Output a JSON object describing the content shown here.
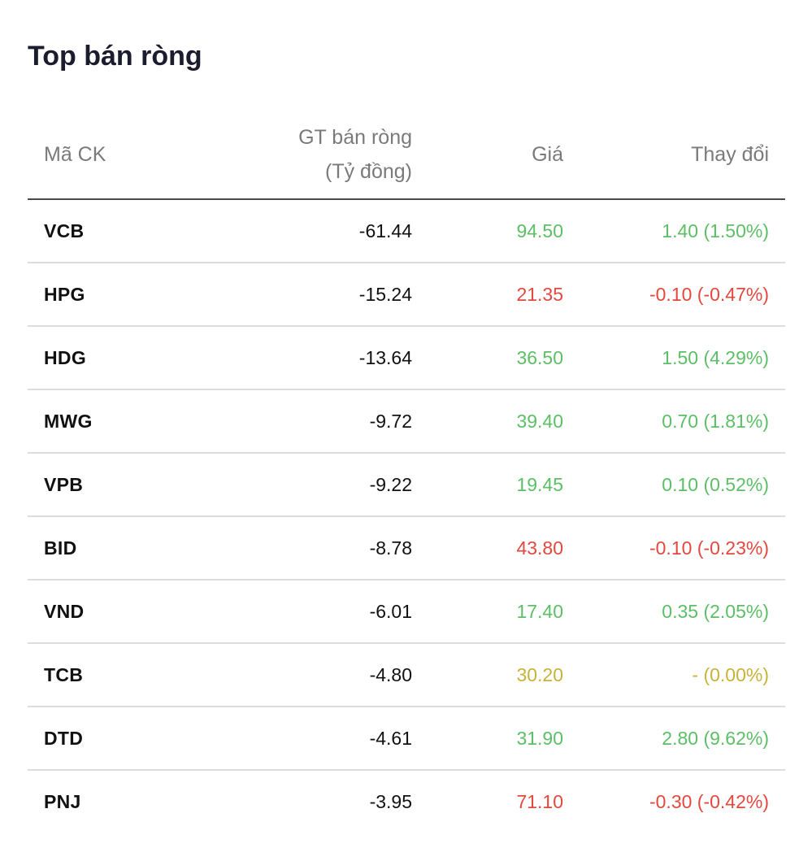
{
  "title": "Top bán ròng",
  "colors": {
    "up": "#5cbf66",
    "down": "#e2483e",
    "reference": "#c9b238"
  },
  "columns": {
    "symbol": "Mã CK",
    "net_sell_line1": "GT bán ròng",
    "net_sell_line2": "(Tỷ đồng)",
    "price": "Giá",
    "change": "Thay đổi"
  },
  "rows": [
    {
      "symbol": "VCB",
      "net_sell": "-61.44",
      "price": "94.50",
      "change": "1.40 (1.50%)",
      "trend": "up"
    },
    {
      "symbol": "HPG",
      "net_sell": "-15.24",
      "price": "21.35",
      "change": "-0.10 (-0.47%)",
      "trend": "down"
    },
    {
      "symbol": "HDG",
      "net_sell": "-13.64",
      "price": "36.50",
      "change": "1.50 (4.29%)",
      "trend": "up"
    },
    {
      "symbol": "MWG",
      "net_sell": "-9.72",
      "price": "39.40",
      "change": "0.70 (1.81%)",
      "trend": "up"
    },
    {
      "symbol": "VPB",
      "net_sell": "-9.22",
      "price": "19.45",
      "change": "0.10 (0.52%)",
      "trend": "up"
    },
    {
      "symbol": "BID",
      "net_sell": "-8.78",
      "price": "43.80",
      "change": "-0.10 (-0.23%)",
      "trend": "down"
    },
    {
      "symbol": "VND",
      "net_sell": "-6.01",
      "price": "17.40",
      "change": "0.35 (2.05%)",
      "trend": "up"
    },
    {
      "symbol": "TCB",
      "net_sell": "-4.80",
      "price": "30.20",
      "change": "- (0.00%)",
      "trend": "ref"
    },
    {
      "symbol": "DTD",
      "net_sell": "-4.61",
      "price": "31.90",
      "change": "2.80 (9.62%)",
      "trend": "up"
    },
    {
      "symbol": "PNJ",
      "net_sell": "-3.95",
      "price": "71.10",
      "change": "-0.30 (-0.42%)",
      "trend": "down"
    }
  ]
}
